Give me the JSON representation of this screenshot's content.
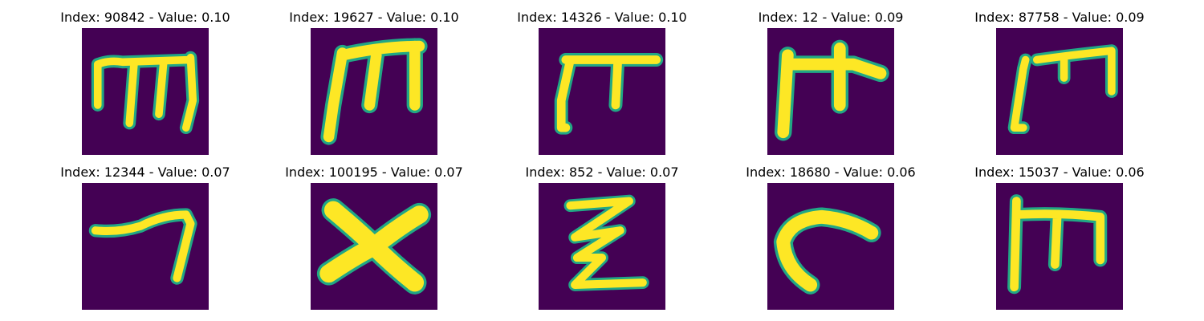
{
  "colors": {
    "background": "#440154",
    "stroke": "#FDE725",
    "edge": "#21A785",
    "edge_dark": "#2C708E"
  },
  "panels": [
    {
      "title": "Index: 90842 - Value: 0.10",
      "glyph": "ink-m-looped-icon"
    },
    {
      "title": "Index: 19627 - Value: 0.10",
      "glyph": "ink-m-wide-icon"
    },
    {
      "title": "Index: 14326 - Value: 0.10",
      "glyph": "ink-pi-icon"
    },
    {
      "title": "Index: 12 - Value: 0.09",
      "glyph": "ink-pi-cross-icon"
    },
    {
      "title": "Index: 87758 - Value: 0.09",
      "glyph": "ink-m-offset-icon"
    },
    {
      "title": "Index: 12344 - Value: 0.07",
      "glyph": "ink-seven-icon"
    },
    {
      "title": "Index: 100195 - Value: 0.07",
      "glyph": "ink-x-icon"
    },
    {
      "title": "Index: 852 - Value: 0.07",
      "glyph": "ink-zigzag-icon"
    },
    {
      "title": "Index: 18680 - Value: 0.06",
      "glyph": "ink-hook-icon"
    },
    {
      "title": "Index: 15037 - Value: 0.06",
      "glyph": "ink-m-box-icon"
    }
  ]
}
